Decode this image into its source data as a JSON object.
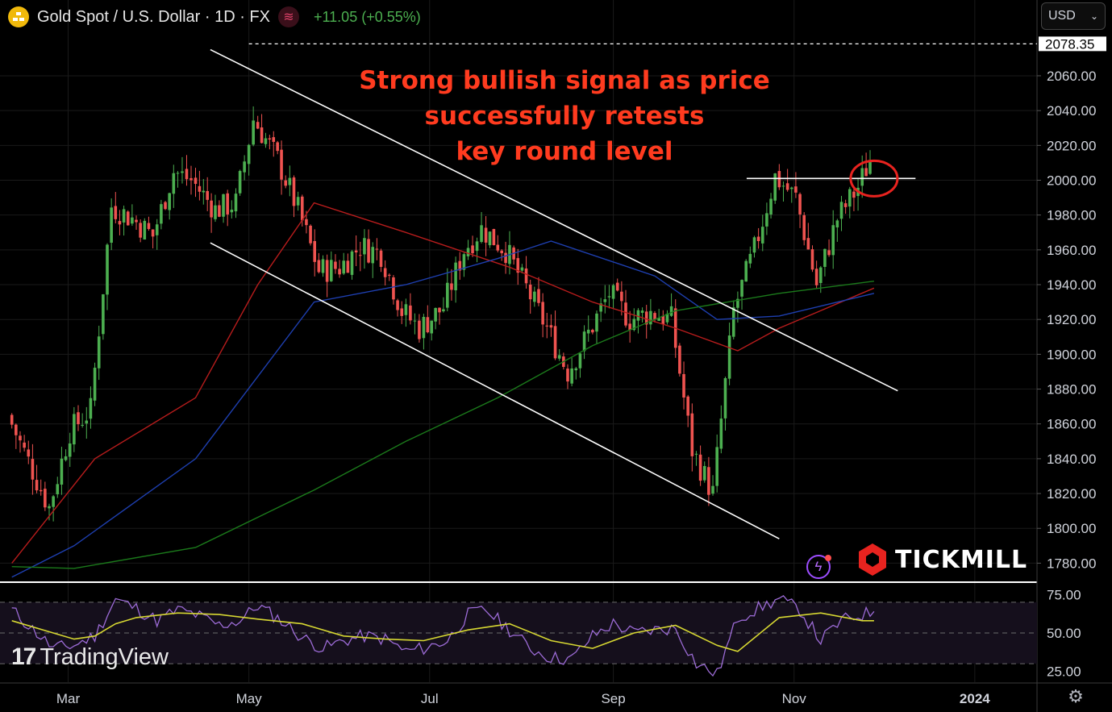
{
  "header": {
    "title": "Gold Spot / U.S. Dollar · 1D · FX",
    "change": "+11.05 (+0.55%)",
    "currency": "USD",
    "icons": [
      "gold-logo-icon",
      "indicator-icon",
      "chevron-down-icon",
      "lightning-icon",
      "settings-gear-icon"
    ]
  },
  "annotation": {
    "line1": "Strong bullish signal as price",
    "line2": "successfully retests",
    "line3": "key round level"
  },
  "brand": {
    "tradingview": "TradingView",
    "tradingview_mark": "17",
    "tickmill": "TICKMILL"
  },
  "colors": {
    "up": "#4caf50",
    "down": "#ef5350",
    "ma_red": "#b71c1c",
    "ma_blue": "#1e3fb0",
    "ma_green": "#1b7a1b",
    "rsi": "#9c6bd6",
    "rsi_ma": "#d7d832",
    "annotation": "#ff3b1f",
    "trendline": "#ffffff"
  },
  "chart_data": [
    {
      "type": "candlestick",
      "symbol": "Gold Spot / U.S. Dollar",
      "timeframe": "1D",
      "ylim": [
        1770,
        2085
      ],
      "y_ticks": [
        "2060.00",
        "2040.00",
        "2020.00",
        "2000.00",
        "1980.00",
        "1960.00",
        "1940.00",
        "1920.00",
        "1900.00",
        "1880.00",
        "1860.00",
        "1840.00",
        "1820.00",
        "1800.00",
        "1780.00"
      ],
      "price_label": "2078.35",
      "x_ticks": [
        "Mar",
        "May",
        "Jul",
        "Sep",
        "Nov",
        "2024"
      ],
      "closes_sampled": {
        "dates": [
          "2023-02-10",
          "2023-02-24",
          "2023-03-03",
          "2023-03-10",
          "2023-03-17",
          "2023-03-24",
          "2023-03-31",
          "2023-04-07",
          "2023-04-13",
          "2023-04-21",
          "2023-04-28",
          "2023-05-04",
          "2023-05-12",
          "2023-05-19",
          "2023-05-26",
          "2023-06-02",
          "2023-06-09",
          "2023-06-16",
          "2023-06-23",
          "2023-06-29",
          "2023-07-07",
          "2023-07-14",
          "2023-07-20",
          "2023-07-28",
          "2023-08-04",
          "2023-08-11",
          "2023-08-18",
          "2023-08-25",
          "2023-09-01",
          "2023-09-08",
          "2023-09-15",
          "2023-09-22",
          "2023-09-29",
          "2023-10-06",
          "2023-10-13",
          "2023-10-20",
          "2023-10-27",
          "2023-11-03",
          "2023-11-10",
          "2023-11-17",
          "2023-11-24",
          "2023-11-28"
        ],
        "close": [
          1865,
          1812,
          1856,
          1868,
          1985,
          1978,
          1968,
          2005,
          2000,
          1983,
          1987,
          2035,
          2012,
          1983,
          1948,
          1950,
          1962,
          1958,
          1925,
          1915,
          1927,
          1960,
          1972,
          1960,
          1938,
          1915,
          1890,
          1912,
          1935,
          1920,
          1924,
          1920,
          1845,
          1820,
          1925,
          1960,
          2002,
          1990,
          1940,
          1978,
          1996,
          2012
        ]
      },
      "moving_averages": [
        {
          "color": "red",
          "points": [
            [
              "2023-02-10",
              1780
            ],
            [
              "2023-03-10",
              1840
            ],
            [
              "2023-04-13",
              1875
            ],
            [
              "2023-05-04",
              1940
            ],
            [
              "2023-05-23",
              1987
            ],
            [
              "2023-06-23",
              1970
            ],
            [
              "2023-07-28",
              1950
            ],
            [
              "2023-08-25",
              1930
            ],
            [
              "2023-09-22",
              1915
            ],
            [
              "2023-10-13",
              1902
            ],
            [
              "2023-10-27",
              1915
            ],
            [
              "2023-11-28",
              1938
            ]
          ]
        },
        {
          "color": "blue",
          "points": [
            [
              "2023-02-10",
              1772
            ],
            [
              "2023-03-03",
              1790
            ],
            [
              "2023-04-13",
              1840
            ],
            [
              "2023-05-23",
              1930
            ],
            [
              "2023-06-23",
              1940
            ],
            [
              "2023-07-24",
              1955
            ],
            [
              "2023-08-11",
              1965
            ],
            [
              "2023-09-15",
              1945
            ],
            [
              "2023-10-06",
              1920
            ],
            [
              "2023-10-27",
              1922
            ],
            [
              "2023-11-28",
              1935
            ]
          ]
        },
        {
          "color": "green",
          "points": [
            [
              "2023-02-10",
              1778
            ],
            [
              "2023-03-03",
              1777
            ],
            [
              "2023-04-13",
              1789
            ],
            [
              "2023-05-23",
              1822
            ],
            [
              "2023-06-23",
              1850
            ],
            [
              "2023-07-24",
              1875
            ],
            [
              "2023-08-25",
              1905
            ],
            [
              "2023-09-22",
              1925
            ],
            [
              "2023-10-27",
              1935
            ],
            [
              "2023-11-28",
              1942
            ]
          ]
        }
      ],
      "trendlines": [
        {
          "name": "channel upper",
          "from": [
            "2023-04-18",
            2075
          ],
          "to": [
            "2023-12-06",
            1879
          ]
        },
        {
          "name": "channel lower",
          "from": [
            "2023-04-18",
            1964
          ],
          "to": [
            "2023-10-27",
            1794
          ]
        },
        {
          "name": "round level",
          "from": [
            "2023-10-16",
            2001
          ],
          "to": [
            "2023-12-12",
            2001
          ]
        }
      ]
    },
    {
      "type": "line",
      "name": "RSI",
      "ylim": [
        18,
        82
      ],
      "y_ticks": [
        "75.00",
        "50.00",
        "25.00"
      ],
      "dashed_levels": [
        70,
        50,
        30
      ],
      "rsi": {
        "dates": [
          "2023-02-10",
          "2023-02-24",
          "2023-03-03",
          "2023-03-10",
          "2023-03-17",
          "2023-03-24",
          "2023-03-31",
          "2023-04-07",
          "2023-04-13",
          "2023-04-21",
          "2023-04-28",
          "2023-05-04",
          "2023-05-12",
          "2023-05-19",
          "2023-05-26",
          "2023-06-02",
          "2023-06-09",
          "2023-06-16",
          "2023-06-23",
          "2023-06-29",
          "2023-07-07",
          "2023-07-14",
          "2023-07-20",
          "2023-07-28",
          "2023-08-04",
          "2023-08-11",
          "2023-08-18",
          "2023-08-25",
          "2023-09-01",
          "2023-09-08",
          "2023-09-15",
          "2023-09-22",
          "2023-09-29",
          "2023-10-06",
          "2023-10-13",
          "2023-10-20",
          "2023-10-27",
          "2023-11-03",
          "2023-11-10",
          "2023-11-17",
          "2023-11-24",
          "2023-11-28"
        ],
        "values": [
          65,
          40,
          42,
          48,
          72,
          66,
          58,
          65,
          62,
          55,
          58,
          68,
          58,
          47,
          40,
          45,
          48,
          46,
          38,
          40,
          45,
          62,
          65,
          52,
          40,
          34,
          33,
          48,
          56,
          50,
          52,
          53,
          30,
          23,
          60,
          66,
          72,
          65,
          45,
          58,
          62,
          64
        ]
      },
      "rsi_ma": {
        "dates": [
          "2023-02-10",
          "2023-02-24",
          "2023-03-03",
          "2023-03-10",
          "2023-03-17",
          "2023-03-24",
          "2023-04-07",
          "2023-04-21",
          "2023-05-04",
          "2023-05-19",
          "2023-06-02",
          "2023-06-16",
          "2023-06-29",
          "2023-07-14",
          "2023-07-28",
          "2023-08-11",
          "2023-08-25",
          "2023-09-08",
          "2023-09-22",
          "2023-10-06",
          "2023-10-13",
          "2023-10-27",
          "2023-11-10",
          "2023-11-24",
          "2023-11-28"
        ],
        "values": [
          58,
          50,
          46,
          48,
          56,
          60,
          63,
          62,
          59,
          56,
          48,
          46,
          45,
          52,
          56,
          45,
          40,
          50,
          55,
          42,
          38,
          60,
          63,
          58,
          58
        ]
      }
    }
  ]
}
